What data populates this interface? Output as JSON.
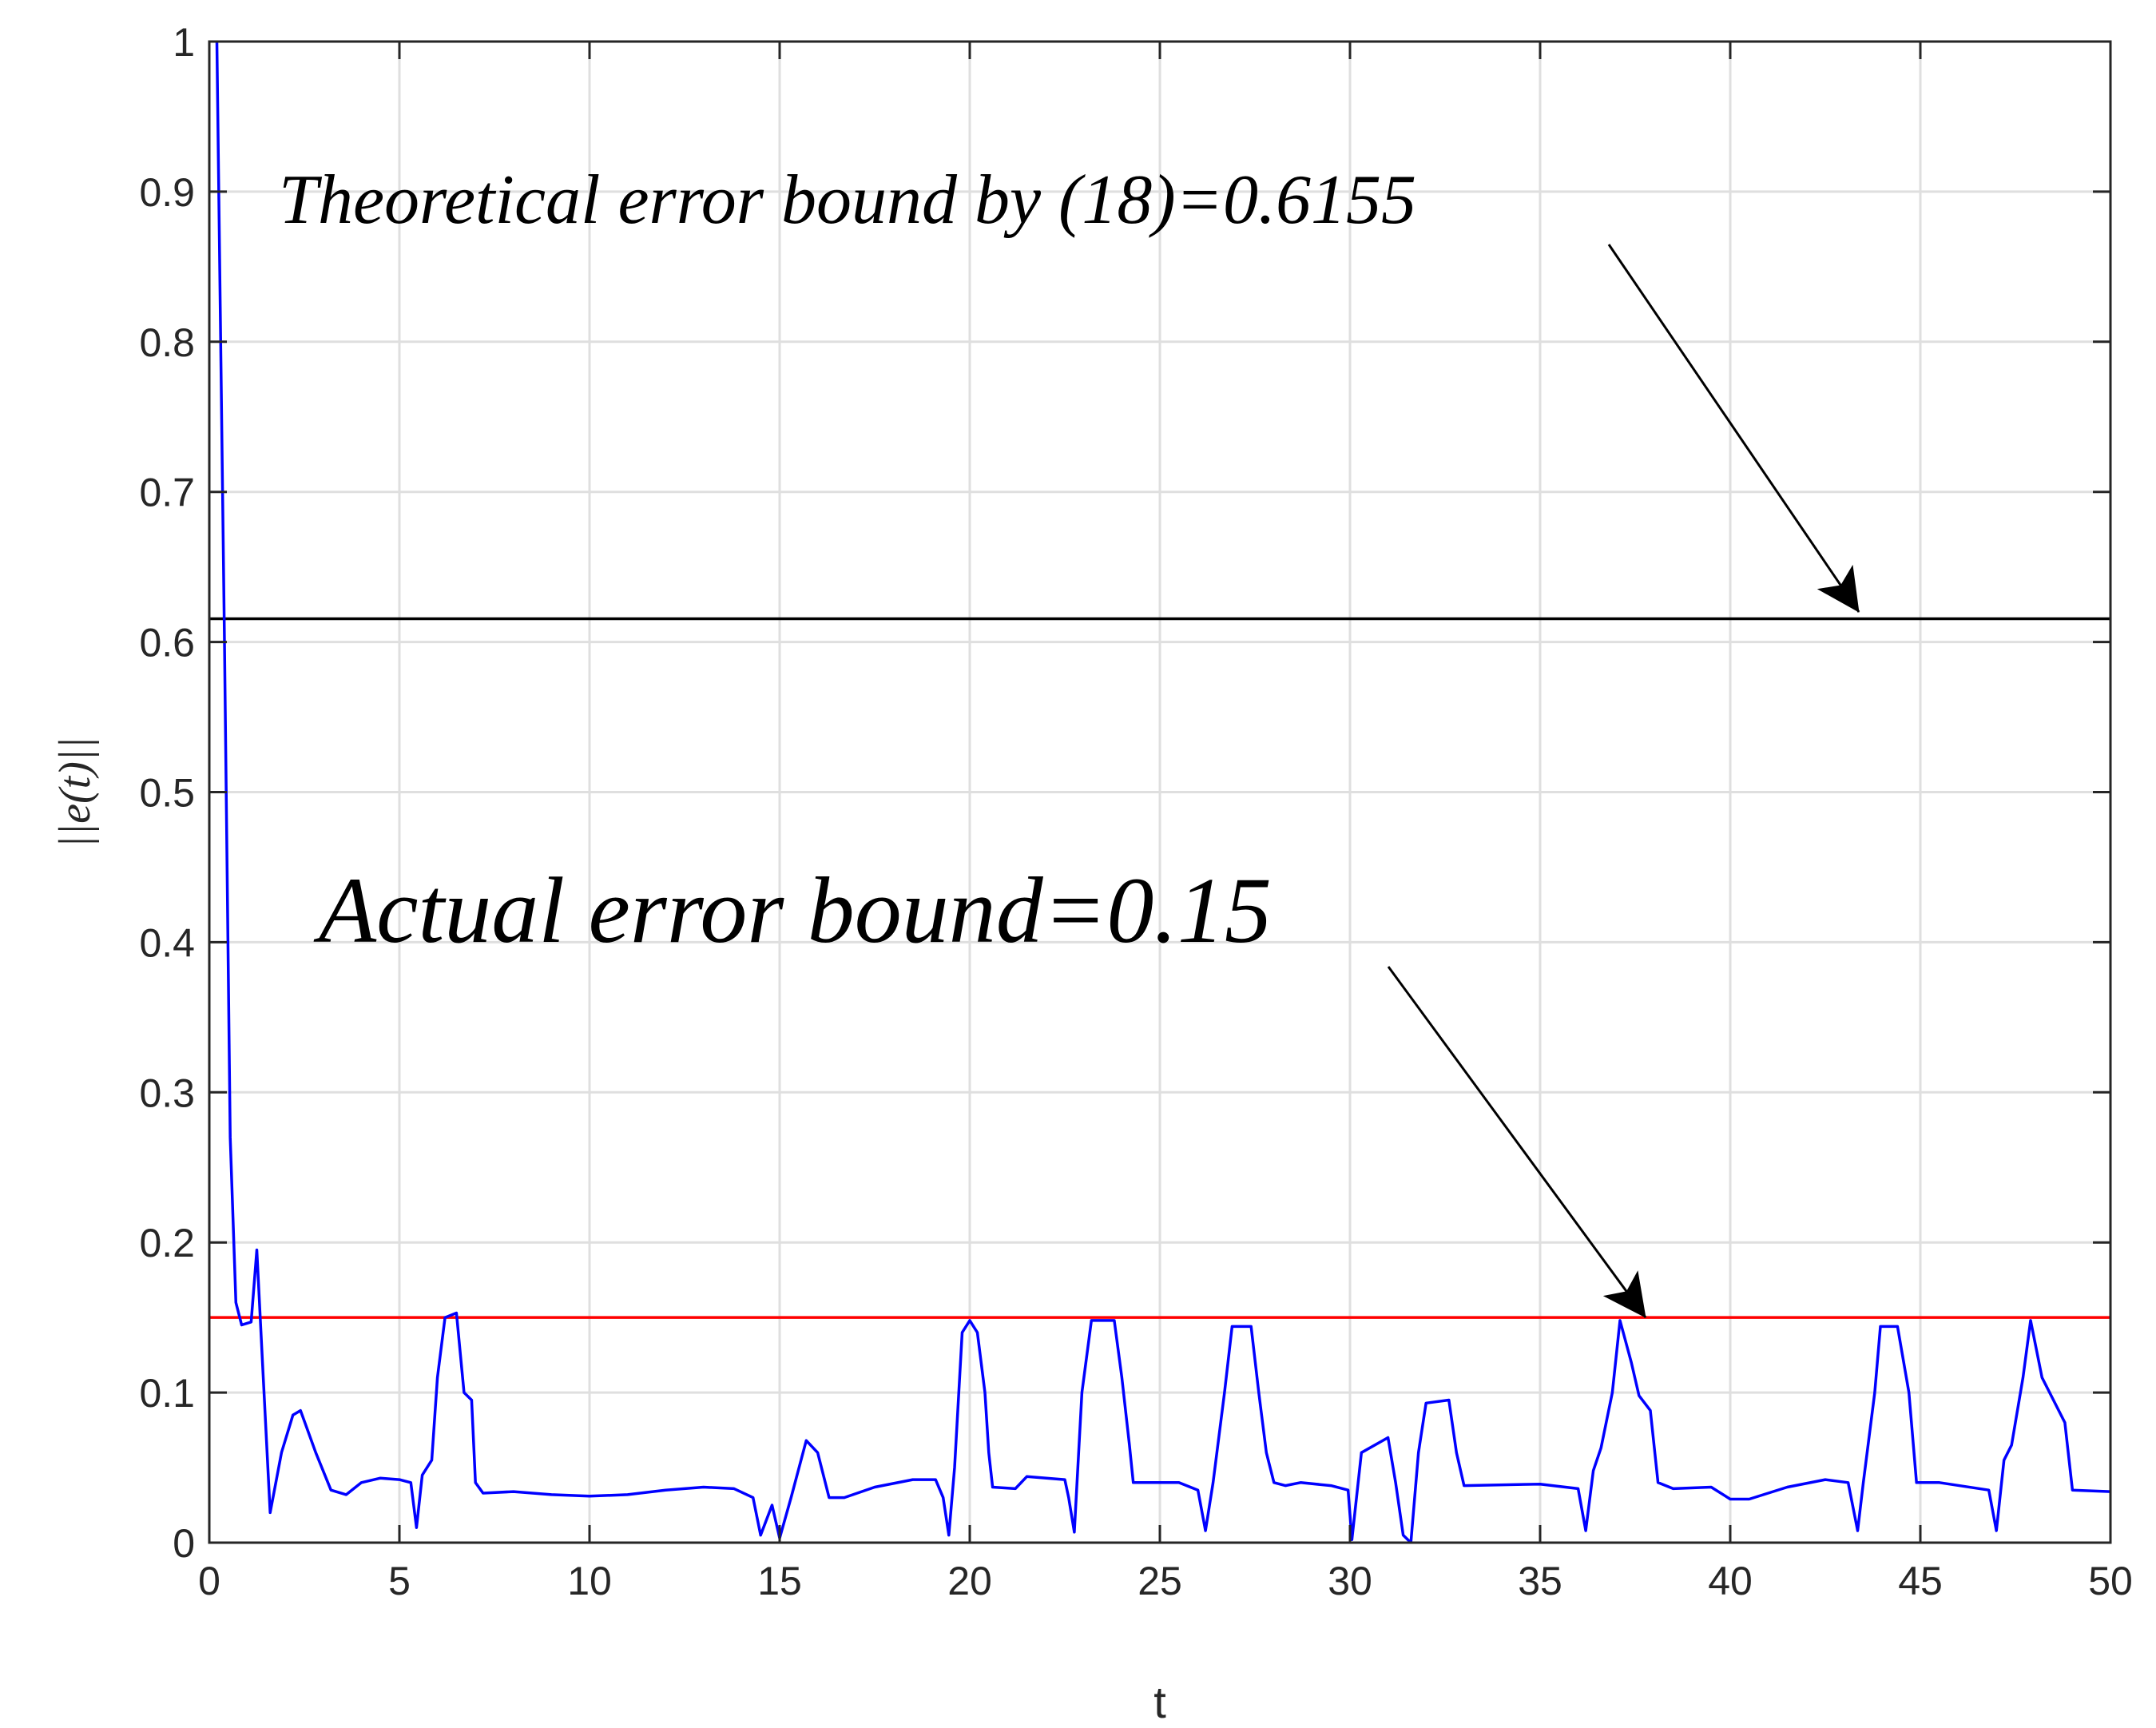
{
  "chart_data": {
    "type": "line",
    "xlabel": "t",
    "ylabel": "||e(t)||",
    "xlim": [
      0,
      50
    ],
    "xticks": [
      0,
      5,
      10,
      15,
      20,
      25,
      30,
      35,
      40,
      45,
      50
    ],
    "ylim": [
      0,
      1
    ],
    "yticks": [
      0,
      0.1,
      0.2,
      0.3,
      0.4,
      0.5,
      0.6,
      0.7,
      0.8,
      0.9,
      1
    ],
    "grid": true,
    "annotations": [
      "Theoretical error bound by (18)=0.6155",
      "Actual error bound=0.15"
    ],
    "hlines": [
      {
        "y": 0.6155,
        "color": "#000000"
      },
      {
        "y": 0.15,
        "color": "#ff0000"
      }
    ],
    "series": [
      {
        "color": "#0000ff",
        "x": [
          0.2,
          0.4,
          0.55,
          0.7,
          0.85,
          1.1,
          1.25,
          1.4,
          1.6,
          1.9,
          2.2,
          2.4,
          2.8,
          3.2,
          3.6,
          4.0,
          4.5,
          5.0,
          5.3,
          5.45,
          5.6,
          5.85,
          6.0,
          6.2,
          6.5,
          6.7,
          6.9,
          7.0,
          7.2,
          8,
          9,
          10,
          11,
          12,
          13,
          13.8,
          14.3,
          14.5,
          14.8,
          15.0,
          15.3,
          15.7,
          16.0,
          16.3,
          16.7,
          17.5,
          18.5,
          19.1,
          19.3,
          19.45,
          19.6,
          19.8,
          20.0,
          20.2,
          20.4,
          20.5,
          20.6,
          21.2,
          21.5,
          22.5,
          22.6,
          22.75,
          22.95,
          23.2,
          23.8,
          24.0,
          24.2,
          24.3,
          25.5,
          26.0,
          26.2,
          26.4,
          26.7,
          26.9,
          27.4,
          27.6,
          27.8,
          28.0,
          28.3,
          28.7,
          29.5,
          29.95,
          30.05,
          30.3,
          31.0,
          31.2,
          31.4,
          31.6,
          31.8,
          32.0,
          32.6,
          32.8,
          33.0,
          35,
          36.0,
          36.2,
          36.4,
          36.6,
          36.9,
          37.1,
          37.4,
          37.6,
          37.9,
          38.1,
          38.5,
          39.5,
          40.0,
          40.5,
          41.5,
          42.5,
          43.1,
          43.35,
          43.5,
          43.8,
          43.95,
          44.4,
          44.7,
          44.9,
          45.5,
          46.8,
          47.0,
          47.2,
          47.4,
          47.7,
          47.9,
          48.2,
          48.5,
          48.8,
          49.0,
          50
        ],
        "values": [
          1.0,
          0.6,
          0.27,
          0.16,
          0.145,
          0.147,
          0.195,
          0.12,
          0.02,
          0.06,
          0.085,
          0.088,
          0.06,
          0.035,
          0.032,
          0.04,
          0.043,
          0.042,
          0.04,
          0.01,
          0.045,
          0.055,
          0.11,
          0.15,
          0.153,
          0.1,
          0.095,
          0.04,
          0.033,
          0.034,
          0.032,
          0.031,
          0.032,
          0.035,
          0.037,
          0.036,
          0.03,
          0.005,
          0.025,
          0.003,
          0.03,
          0.068,
          0.06,
          0.03,
          0.03,
          0.037,
          0.042,
          0.042,
          0.03,
          0.005,
          0.05,
          0.14,
          0.148,
          0.14,
          0.1,
          0.06,
          0.037,
          0.036,
          0.044,
          0.042,
          0.03,
          0.007,
          0.1,
          0.148,
          0.148,
          0.11,
          0.065,
          0.04,
          0.04,
          0.035,
          0.008,
          0.04,
          0.1,
          0.144,
          0.144,
          0.1,
          0.06,
          0.04,
          0.038,
          0.04,
          0.038,
          0.035,
          0.002,
          0.06,
          0.07,
          0.04,
          0.005,
          0.0,
          0.06,
          0.093,
          0.095,
          0.06,
          0.038,
          0.039,
          0.036,
          0.008,
          0.048,
          0.063,
          0.1,
          0.148,
          0.12,
          0.098,
          0.088,
          0.04,
          0.036,
          0.037,
          0.029,
          0.029,
          0.037,
          0.042,
          0.04,
          0.008,
          0.04,
          0.1,
          0.144,
          0.144,
          0.1,
          0.04,
          0.04,
          0.035,
          0.008,
          0.055,
          0.065,
          0.11,
          0.148,
          0.11,
          0.095,
          0.08,
          0.035,
          0.034
        ]
      }
    ]
  }
}
